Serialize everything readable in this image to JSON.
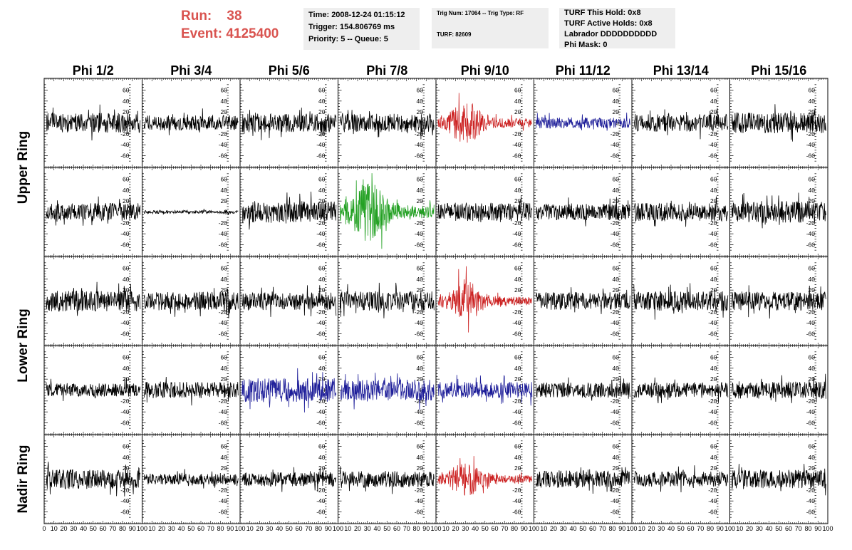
{
  "header": {
    "run_label": "Run:",
    "run_value": "38",
    "event_label": "Event:",
    "event_value": "4125400",
    "time_line": "Time: 2008-12-24 01:15:12",
    "trigger_line": "Trigger: 154.806769 ms",
    "priority_line": "Priority: 5 -- Queue: 5",
    "trig_line": "Trig Num: 17064 -- Trig Type: RF",
    "turf_line": "TURF: 82609",
    "turf_hold_line": "TURF This Hold: 0x8",
    "turf_active_line": "TURF Active Holds: 0x8",
    "labrador_line": "Labrador DDDDDDDDDD",
    "phimask_line": "Phi Mask: 0"
  },
  "chart_data": {
    "type": "line",
    "columns": [
      "Phi 1/2",
      "Phi 3/4",
      "Phi 5/6",
      "Phi 7/8",
      "Phi 9/10",
      "Phi 11/12",
      "Phi 13/14",
      "Phi 15/16"
    ],
    "ring_labels": [
      {
        "label": "Upper Ring",
        "rows": [
          0,
          1
        ]
      },
      {
        "label": "Lower Ring",
        "rows": [
          2,
          3
        ]
      },
      {
        "label": "Nadir Ring",
        "rows": [
          4
        ]
      }
    ],
    "ylim": [
      -75,
      75
    ],
    "yticks": [
      -60,
      -40,
      -20,
      0,
      20,
      40,
      60
    ],
    "xlim": [
      0,
      100
    ],
    "xticks": [
      0,
      10,
      20,
      30,
      40,
      50,
      60,
      70,
      80,
      90,
      100
    ],
    "xtick_labels": [
      "0",
      "10",
      "20",
      "30",
      "40",
      "50",
      "60",
      "70",
      "80",
      "90",
      "100"
    ],
    "colors": {
      "default": "#000000",
      "red": "#cc2222",
      "blue": "#1e1e99",
      "green": "#22a022"
    },
    "panels": [
      [
        {
          "color": "default",
          "amp": 18,
          "seed": 11
        },
        {
          "color": "default",
          "amp": 14,
          "seed": 12
        },
        {
          "color": "default",
          "amp": 17,
          "seed": 13
        },
        {
          "color": "default",
          "amp": 17,
          "seed": 14
        },
        {
          "color": "red",
          "amp": 24,
          "seed": 15,
          "burst": true
        },
        {
          "color": "blue",
          "amp": 10,
          "seed": 16
        },
        {
          "color": "default",
          "amp": 16,
          "seed": 17
        },
        {
          "color": "default",
          "amp": 19,
          "seed": 18
        }
      ],
      [
        {
          "color": "default",
          "amp": 16,
          "seed": 21
        },
        {
          "color": "default",
          "amp": 3,
          "seed": 22
        },
        {
          "color": "default",
          "amp": 20,
          "seed": 23
        },
        {
          "color": "green",
          "amp": 34,
          "seed": 24,
          "burst": true
        },
        {
          "color": "default",
          "amp": 17,
          "seed": 25
        },
        {
          "color": "default",
          "amp": 15,
          "seed": 26
        },
        {
          "color": "default",
          "amp": 17,
          "seed": 27
        },
        {
          "color": "default",
          "amp": 20,
          "seed": 28
        }
      ],
      [
        {
          "color": "default",
          "amp": 19,
          "seed": 31
        },
        {
          "color": "default",
          "amp": 17,
          "seed": 32
        },
        {
          "color": "default",
          "amp": 16,
          "seed": 33
        },
        {
          "color": "default",
          "amp": 18,
          "seed": 34
        },
        {
          "color": "red",
          "amp": 22,
          "seed": 35,
          "burst": true
        },
        {
          "color": "default",
          "amp": 16,
          "seed": 36
        },
        {
          "color": "default",
          "amp": 18,
          "seed": 37
        },
        {
          "color": "default",
          "amp": 17,
          "seed": 38
        }
      ],
      [
        {
          "color": "default",
          "amp": 12,
          "seed": 41
        },
        {
          "color": "default",
          "amp": 15,
          "seed": 42
        },
        {
          "color": "blue",
          "amp": 22,
          "seed": 43
        },
        {
          "color": "blue",
          "amp": 19,
          "seed": 44
        },
        {
          "color": "blue",
          "amp": 15,
          "seed": 45
        },
        {
          "color": "default",
          "amp": 14,
          "seed": 46
        },
        {
          "color": "default",
          "amp": 14,
          "seed": 47
        },
        {
          "color": "default",
          "amp": 16,
          "seed": 48
        }
      ],
      [
        {
          "color": "default",
          "amp": 18,
          "seed": 51
        },
        {
          "color": "default",
          "amp": 10,
          "seed": 52
        },
        {
          "color": "default",
          "amp": 13,
          "seed": 53
        },
        {
          "color": "default",
          "amp": 15,
          "seed": 54
        },
        {
          "color": "red",
          "amp": 20,
          "seed": 55,
          "burst": true
        },
        {
          "color": "default",
          "amp": 16,
          "seed": 56
        },
        {
          "color": "default",
          "amp": 14,
          "seed": 57
        },
        {
          "color": "default",
          "amp": 17,
          "seed": 58
        }
      ]
    ]
  }
}
